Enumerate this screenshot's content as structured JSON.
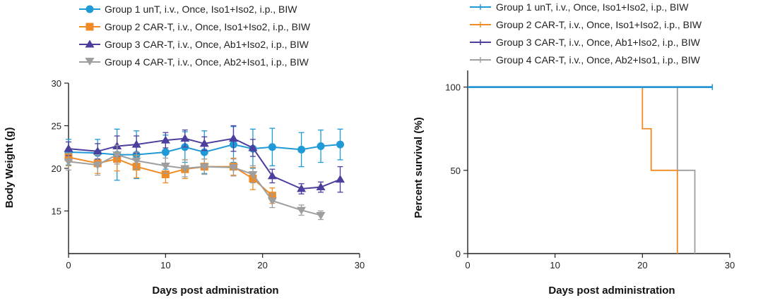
{
  "chart_data": [
    {
      "type": "line",
      "xlabel": "Days post administration",
      "ylabel": "Body Weight (g)",
      "xlim": [
        0,
        30
      ],
      "ylim": [
        10,
        30
      ],
      "xticks": [
        0,
        10,
        20,
        30
      ],
      "yticks": [
        15,
        20,
        25,
        30
      ],
      "legend_position": "top",
      "series": [
        {
          "name": "Group 1 unT, i.v., Once, Iso1+Iso2, i.p., BIW",
          "color": "#1f9ad6",
          "marker": "circle",
          "x": [
            0,
            3,
            5,
            7,
            10,
            12,
            14,
            17,
            19,
            21,
            24,
            26,
            28
          ],
          "y": [
            21.9,
            21.8,
            21.6,
            21.6,
            21.9,
            22.5,
            21.9,
            22.8,
            22.3,
            22.5,
            22.2,
            22.6,
            22.8
          ],
          "err": [
            1.5,
            1.6,
            3.0,
            2.8,
            2.0,
            1.8,
            2.5,
            2.1,
            2.3,
            2.2,
            2.0,
            1.9,
            1.8
          ]
        },
        {
          "name": "Group 2 CAR-T, i.v., Once, Iso1+Iso2, i.p., BIW",
          "color": "#f08a24",
          "marker": "square",
          "x": [
            0,
            3,
            5,
            7,
            10,
            12,
            14,
            17,
            19,
            21
          ],
          "y": [
            21.3,
            20.6,
            21.1,
            20.2,
            19.3,
            19.9,
            20.2,
            20.2,
            18.8,
            16.8
          ],
          "err": [
            1.0,
            1.2,
            1.4,
            1.3,
            1.0,
            1.1,
            0.9,
            1.0,
            1.3,
            0.9
          ]
        },
        {
          "name": "Group 3 CAR-T, i.v., Once, Ab1+Iso2,  i.p., BIW",
          "color": "#4b3f9e",
          "marker": "triangle-up",
          "x": [
            0,
            3,
            5,
            7,
            10,
            12,
            14,
            17,
            19,
            21,
            24,
            26,
            28
          ],
          "y": [
            22.3,
            22.0,
            22.6,
            22.8,
            23.3,
            23.5,
            22.9,
            23.5,
            22.4,
            19.1,
            17.6,
            17.8,
            18.7
          ],
          "err": [
            0.8,
            0.9,
            1.2,
            1.0,
            0.9,
            1.0,
            0.8,
            1.5,
            1.0,
            0.8,
            0.6,
            0.6,
            1.5
          ]
        },
        {
          "name": "Group 4 CAR-T, i.v., Once, Ab2+Iso1, i.p., BIW",
          "color": "#9e9e9e",
          "marker": "triangle-down",
          "x": [
            0,
            3,
            5,
            7,
            10,
            12,
            14,
            17,
            19,
            21,
            24,
            26
          ],
          "y": [
            20.8,
            20.4,
            21.6,
            20.9,
            20.3,
            20.0,
            20.2,
            20.1,
            19.3,
            16.2,
            15.1,
            14.5
          ],
          "err": [
            1.0,
            1.2,
            1.1,
            1.0,
            0.9,
            1.0,
            0.9,
            1.0,
            1.0,
            0.8,
            0.6,
            0.5
          ]
        }
      ]
    },
    {
      "type": "line",
      "subtype": "step",
      "xlabel": "Days post administration",
      "ylabel": "Percent survival (%)",
      "xlim": [
        0,
        30
      ],
      "ylim": [
        0,
        110
      ],
      "xticks": [
        0,
        10,
        20,
        30
      ],
      "yticks": [
        0,
        50,
        100
      ],
      "legend_position": "top",
      "series": [
        {
          "name": "Group 1 unT, i.v., Once, Iso1+Iso2, i.p., BIW",
          "color": "#1f9ad6",
          "x": [
            0,
            28
          ],
          "y": [
            100,
            100
          ]
        },
        {
          "name": "Group 2 CAR-T, i.v., Once, Iso1+Iso2, i.p., BIW",
          "color": "#f08a24",
          "x": [
            0,
            20,
            21,
            24
          ],
          "y": [
            100,
            75,
            50,
            0
          ]
        },
        {
          "name": "Group 3 CAR-T, i.v., Once, Ab1+Iso2,  i.p., BIW",
          "color": "#4b3f9e",
          "x": [
            0,
            28
          ],
          "y": [
            100,
            100
          ]
        },
        {
          "name": "Group 4 CAR-T, i.v., Once, Ab2+Iso1, i.p., BIW",
          "color": "#9e9e9e",
          "x": [
            0,
            24,
            26
          ],
          "y": [
            100,
            50,
            0
          ]
        }
      ]
    }
  ]
}
